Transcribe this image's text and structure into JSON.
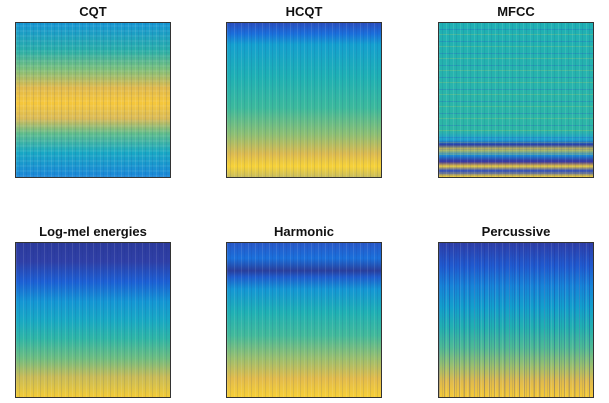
{
  "panels": [
    {
      "title": "CQT"
    },
    {
      "title": "HCQT"
    },
    {
      "title": "MFCC"
    },
    {
      "title": "Log-mel energies"
    },
    {
      "title": "Harmonic"
    },
    {
      "title": "Percussive"
    }
  ]
}
